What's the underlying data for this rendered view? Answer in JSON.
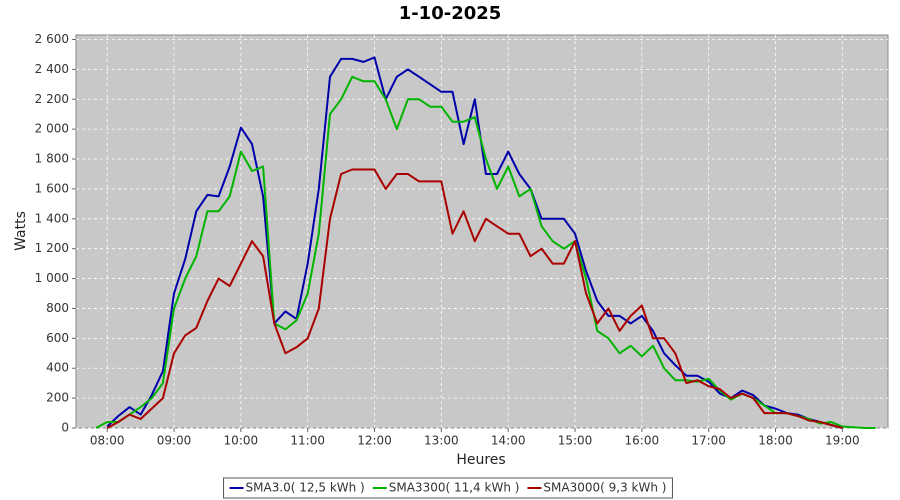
{
  "chart_data": {
    "type": "line",
    "title": "1-10-2025",
    "xlabel": "Heures",
    "ylabel": "Watts",
    "x": [
      "07:50",
      "08:00",
      "08:10",
      "08:20",
      "08:30",
      "08:40",
      "08:50",
      "09:00",
      "09:10",
      "09:20",
      "09:30",
      "09:40",
      "09:50",
      "10:00",
      "10:10",
      "10:20",
      "10:30",
      "10:40",
      "10:50",
      "11:00",
      "11:10",
      "11:20",
      "11:30",
      "11:40",
      "11:50",
      "12:00",
      "12:10",
      "12:20",
      "12:30",
      "12:40",
      "12:50",
      "13:00",
      "13:10",
      "13:20",
      "13:30",
      "13:40",
      "13:50",
      "14:00",
      "14:10",
      "14:20",
      "14:30",
      "14:40",
      "14:50",
      "15:00",
      "15:10",
      "15:20",
      "15:30",
      "15:40",
      "15:50",
      "16:00",
      "16:10",
      "16:20",
      "16:30",
      "16:40",
      "16:50",
      "17:00",
      "17:10",
      "17:20",
      "17:30",
      "17:40",
      "17:50",
      "18:00",
      "18:10",
      "18:20",
      "18:30",
      "18:40",
      "18:50",
      "19:00",
      "19:10",
      "19:20",
      "19:30"
    ],
    "series": [
      {
        "name": "SMA3.0( 12,5 kWh )",
        "color": "#0000aa",
        "values": [
          null,
          10,
          80,
          140,
          90,
          220,
          380,
          900,
          1130,
          1450,
          1560,
          1550,
          1750,
          2010,
          1900,
          1550,
          700,
          780,
          730,
          1100,
          1600,
          2350,
          2470,
          2470,
          2450,
          2480,
          2200,
          2350,
          2400,
          2350,
          2300,
          2250,
          2250,
          1900,
          2200,
          1700,
          1700,
          1850,
          1700,
          1600,
          1400,
          1400,
          1400,
          1300,
          1050,
          850,
          750,
          750,
          700,
          750,
          650,
          500,
          420,
          350,
          350,
          310,
          230,
          200,
          250,
          220,
          150,
          130,
          100,
          90,
          60,
          40,
          20,
          0,
          null,
          null,
          null
        ]
      },
      {
        "name": "SMA3300( 11,4 kWh )",
        "color": "#00b400",
        "values": [
          0,
          40,
          40,
          90,
          140,
          200,
          300,
          800,
          1000,
          1150,
          1450,
          1450,
          1550,
          1850,
          1720,
          1750,
          700,
          660,
          720,
          900,
          1300,
          2100,
          2200,
          2350,
          2320,
          2320,
          2200,
          2000,
          2200,
          2200,
          2150,
          2150,
          2050,
          2050,
          2080,
          1800,
          1600,
          1750,
          1550,
          1600,
          1350,
          1250,
          1200,
          1250,
          1000,
          650,
          600,
          500,
          550,
          480,
          550,
          400,
          320,
          320,
          310,
          330,
          250,
          190,
          230,
          200,
          150,
          100,
          100,
          80,
          60,
          30,
          40,
          10,
          5,
          0,
          0
        ]
      },
      {
        "name": "SMA3000( 9,3 kWh )",
        "color": "#aa0000",
        "values": [
          null,
          0,
          40,
          90,
          60,
          130,
          200,
          500,
          620,
          670,
          850,
          1000,
          950,
          1100,
          1250,
          1150,
          700,
          500,
          540,
          600,
          800,
          1400,
          1700,
          1730,
          1730,
          1730,
          1600,
          1700,
          1700,
          1650,
          1650,
          1650,
          1300,
          1450,
          1250,
          1400,
          1350,
          1300,
          1300,
          1150,
          1200,
          1100,
          1100,
          1250,
          900,
          700,
          800,
          650,
          750,
          820,
          600,
          600,
          500,
          300,
          320,
          280,
          260,
          200,
          230,
          200,
          100,
          100,
          100,
          80,
          50,
          40,
          20,
          0,
          null,
          null,
          null
        ]
      }
    ],
    "xlim": [
      "07:32",
      "19:41"
    ],
    "xticks": [
      "08:00",
      "09:00",
      "10:00",
      "11:00",
      "12:00",
      "13:00",
      "14:00",
      "15:00",
      "16:00",
      "17:00",
      "18:00",
      "19:00"
    ],
    "ylim": [
      0,
      2630
    ],
    "yticks": [
      0,
      200,
      400,
      600,
      800,
      {
        "value": 1000,
        "label": "1 000"
      },
      {
        "value": 1200,
        "label": "1 200"
      },
      {
        "value": 1400,
        "label": "1 400"
      },
      {
        "value": 1600,
        "label": "1 600"
      },
      {
        "value": 1800,
        "label": "1 800"
      },
      {
        "value": 2000,
        "label": "2 000"
      },
      {
        "value": 2200,
        "label": "2 200"
      },
      {
        "value": 2400,
        "label": "2 400"
      },
      {
        "value": 2600,
        "label": "2 600"
      }
    ],
    "grid": true,
    "background": "#c8c8c8",
    "legend": "bottom"
  }
}
